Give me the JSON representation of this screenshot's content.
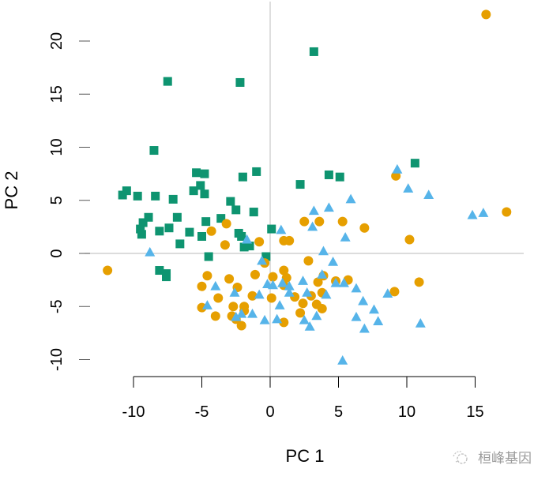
{
  "chart_data": {
    "type": "scatter",
    "title": "",
    "xlabel": "PC 1",
    "ylabel": "PC 2",
    "xlim": [
      -11.8,
      18.6
    ],
    "ylim": [
      -11.6,
      23.9
    ],
    "xticks": [
      -10,
      -5,
      0,
      5,
      10,
      15
    ],
    "yticks": [
      -10,
      -5,
      0,
      5,
      10,
      15,
      20
    ],
    "xtick_labels": [
      "-10",
      "-5",
      "0",
      "5",
      "10",
      "15"
    ],
    "ytick_labels": [
      "-10",
      "-5",
      "0",
      "5",
      "10",
      "15",
      "20"
    ],
    "grid": false,
    "reference_lines": {
      "x": 0,
      "y": 0,
      "color": "#c8c8c8"
    },
    "legend": null,
    "series": [
      {
        "name": "group-1",
        "marker": "square",
        "color": "#0e9470",
        "points": [
          [
            -7.5,
            16.2
          ],
          [
            -2.2,
            16.1
          ],
          [
            3.2,
            19.0
          ],
          [
            -8.5,
            9.7
          ],
          [
            -1.0,
            7.7
          ],
          [
            4.3,
            7.4
          ],
          [
            5.1,
            7.2
          ],
          [
            10.6,
            8.5
          ],
          [
            -5.4,
            7.6
          ],
          [
            -4.8,
            7.5
          ],
          [
            -5.1,
            6.4
          ],
          [
            -5.6,
            5.9
          ],
          [
            -4.8,
            5.6
          ],
          [
            -2.0,
            7.2
          ],
          [
            2.2,
            6.5
          ],
          [
            -10.8,
            5.5
          ],
          [
            -10.5,
            5.9
          ],
          [
            -9.7,
            5.4
          ],
          [
            -8.4,
            5.4
          ],
          [
            -7.1,
            5.1
          ],
          [
            -2.9,
            4.9
          ],
          [
            -8.9,
            3.4
          ],
          [
            -9.3,
            2.9
          ],
          [
            -9.5,
            2.3
          ],
          [
            -9.4,
            1.8
          ],
          [
            -8.1,
            2.1
          ],
          [
            -7.4,
            2.4
          ],
          [
            -6.8,
            3.4
          ],
          [
            -5.9,
            2.0
          ],
          [
            -4.7,
            3.0
          ],
          [
            -3.6,
            3.3
          ],
          [
            -1.2,
            3.9
          ],
          [
            -2.5,
            4.1
          ],
          [
            -5.0,
            1.6
          ],
          [
            -2.3,
            1.9
          ],
          [
            -1.9,
            0.6
          ],
          [
            -6.6,
            0.9
          ],
          [
            -4.5,
            -0.3
          ],
          [
            -8.1,
            -1.6
          ],
          [
            -7.6,
            -1.9
          ],
          [
            -7.6,
            -2.2
          ],
          [
            -2.1,
            1.6
          ],
          [
            -1.5,
            0.7
          ],
          [
            -0.3,
            -0.3
          ],
          [
            0.1,
            2.3
          ]
        ]
      },
      {
        "name": "group-2",
        "marker": "circle",
        "color": "#e69f00",
        "points": [
          [
            15.8,
            22.5
          ],
          [
            17.3,
            3.9
          ],
          [
            -11.9,
            -1.6
          ],
          [
            9.2,
            7.3
          ],
          [
            10.2,
            1.3
          ],
          [
            5.3,
            3.0
          ],
          [
            2.5,
            3.0
          ],
          [
            3.6,
            3.0
          ],
          [
            6.9,
            2.4
          ],
          [
            1.4,
            1.2
          ],
          [
            10.9,
            -2.7
          ],
          [
            9.1,
            -3.6
          ],
          [
            -3.2,
            2.8
          ],
          [
            -4.3,
            2.1
          ],
          [
            -3.3,
            0.8
          ],
          [
            -0.8,
            1.1
          ],
          [
            -0.4,
            -0.9
          ],
          [
            -1.1,
            -2.0
          ],
          [
            -3.0,
            -2.4
          ],
          [
            -5.0,
            -3.1
          ],
          [
            -5.0,
            -5.1
          ],
          [
            -2.4,
            -3.2
          ],
          [
            -1.3,
            -4.0
          ],
          [
            -2.7,
            -5.0
          ],
          [
            -3.8,
            -4.2
          ],
          [
            -1.9,
            -5.4
          ],
          [
            -2.5,
            -6.2
          ],
          [
            -2.1,
            -6.8
          ],
          [
            0.2,
            -2.2
          ],
          [
            1.0,
            -1.6
          ],
          [
            1.0,
            -3.0
          ],
          [
            1.2,
            -2.3
          ],
          [
            3.5,
            -2.7
          ],
          [
            3.9,
            -2.1
          ],
          [
            4.8,
            -2.6
          ],
          [
            5.7,
            -2.5
          ],
          [
            1.8,
            -4.1
          ],
          [
            3.0,
            -4.0
          ],
          [
            3.8,
            -3.7
          ],
          [
            3.4,
            -4.8
          ],
          [
            2.4,
            -4.7
          ],
          [
            3.8,
            -5.2
          ],
          [
            -1.9,
            -5.0
          ],
          [
            -4.6,
            -2.1
          ],
          [
            0.1,
            -4.2
          ],
          [
            -4.0,
            -5.9
          ],
          [
            -2.8,
            -5.9
          ],
          [
            2.2,
            -5.6
          ],
          [
            1.0,
            -6.5
          ],
          [
            2.8,
            -0.7
          ],
          [
            1.0,
            1.2
          ]
        ]
      },
      {
        "name": "group-3",
        "marker": "triangle",
        "color": "#56b4e9",
        "points": [
          [
            3.2,
            4.0
          ],
          [
            4.3,
            4.3
          ],
          [
            5.9,
            5.1
          ],
          [
            9.3,
            7.9
          ],
          [
            10.1,
            6.1
          ],
          [
            11.6,
            5.5
          ],
          [
            14.8,
            3.6
          ],
          [
            15.6,
            3.8
          ],
          [
            -8.8,
            0.1
          ],
          [
            0.8,
            2.2
          ],
          [
            3.9,
            0.2
          ],
          [
            5.5,
            1.5
          ],
          [
            4.6,
            -0.8
          ],
          [
            5.4,
            -2.8
          ],
          [
            3.8,
            -2.0
          ],
          [
            -1.7,
            1.3
          ],
          [
            -0.2,
            -2.9
          ],
          [
            -4.6,
            -4.9
          ],
          [
            -4.0,
            -3.1
          ],
          [
            -2.6,
            -3.7
          ],
          [
            -2.5,
            -6.0
          ],
          [
            -1.3,
            -5.7
          ],
          [
            -0.8,
            -3.9
          ],
          [
            0.2,
            -3.0
          ],
          [
            0.9,
            -2.8
          ],
          [
            1.4,
            -3.7
          ],
          [
            2.4,
            -2.6
          ],
          [
            2.7,
            -3.7
          ],
          [
            2.5,
            -6.3
          ],
          [
            2.9,
            -6.9
          ],
          [
            3.4,
            -5.9
          ],
          [
            4.1,
            -3.9
          ],
          [
            4.8,
            -2.8
          ],
          [
            6.3,
            -3.3
          ],
          [
            6.3,
            -6.0
          ],
          [
            6.8,
            -4.5
          ],
          [
            8.6,
            -3.8
          ],
          [
            7.6,
            -5.3
          ],
          [
            7.9,
            -6.4
          ],
          [
            6.9,
            -7.1
          ],
          [
            1.4,
            -3.1
          ],
          [
            0.7,
            -4.9
          ],
          [
            -2.1,
            -5.7
          ],
          [
            -0.4,
            -6.3
          ],
          [
            0.5,
            -6.2
          ],
          [
            5.3,
            -10.1
          ],
          [
            11.0,
            -6.6
          ],
          [
            3.1,
            2.5
          ],
          [
            -0.6,
            -0.7
          ]
        ]
      }
    ]
  },
  "axes": {
    "x": {
      "title": "PC 1",
      "tick_labels": [
        "-10",
        "-5",
        "0",
        "5",
        "10",
        "15"
      ]
    },
    "y": {
      "title": "PC 2",
      "tick_labels": [
        "-10",
        "-5",
        "0",
        "5",
        "10",
        "15",
        "20"
      ]
    }
  },
  "watermark": {
    "text": "桓峰基因",
    "icon": "wechat-logo-icon"
  }
}
